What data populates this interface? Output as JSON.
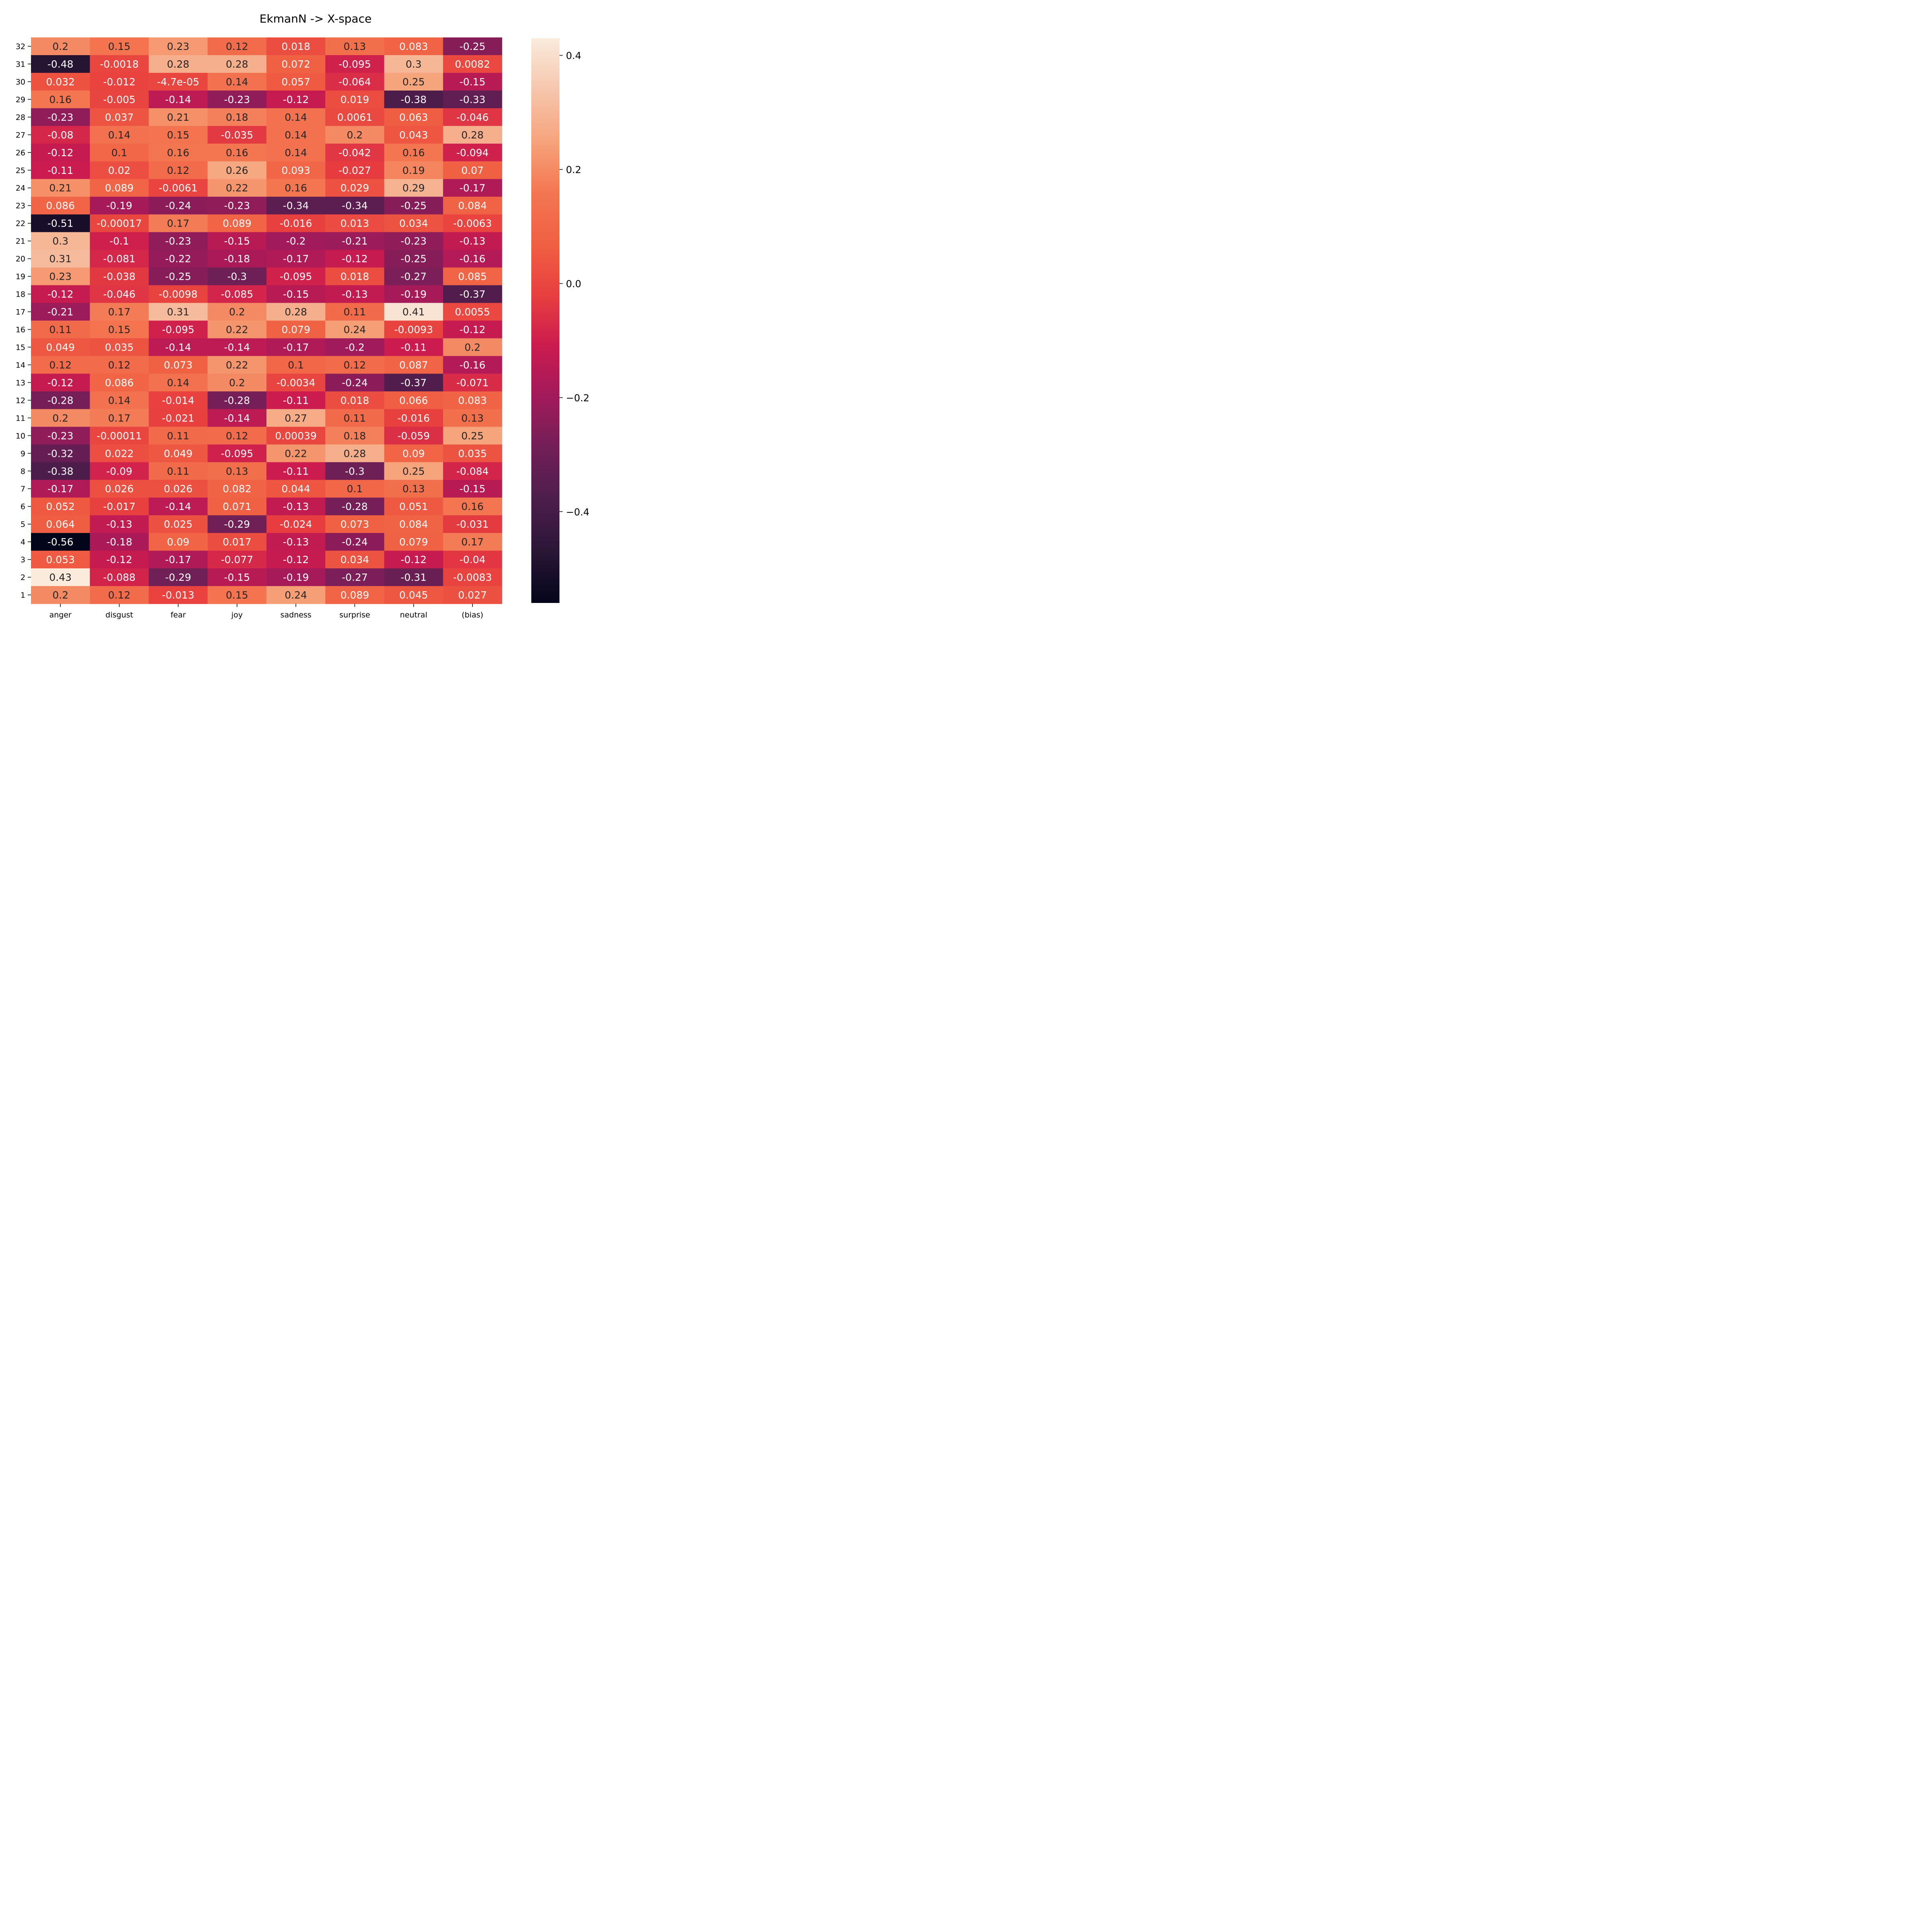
{
  "chart_data": {
    "type": "heatmap",
    "title": "EkmanN -> X-space",
    "x_categories": [
      "anger",
      "disgust",
      "fear",
      "joy",
      "sadness",
      "surprise",
      "neutral",
      "(bias)"
    ],
    "y_categories": [
      "32",
      "31",
      "30",
      "29",
      "28",
      "27",
      "26",
      "25",
      "24",
      "23",
      "22",
      "21",
      "20",
      "19",
      "18",
      "17",
      "16",
      "15",
      "14",
      "13",
      "12",
      "11",
      "10",
      "9",
      "8",
      "7",
      "6",
      "5",
      "4",
      "3",
      "2",
      "1"
    ],
    "values": [
      [
        0.2,
        0.15,
        0.23,
        0.12,
        0.018,
        0.13,
        0.083,
        -0.25
      ],
      [
        -0.48,
        -0.0018,
        0.28,
        0.28,
        0.072,
        -0.095,
        0.3,
        0.0082
      ],
      [
        0.032,
        -0.012,
        -4.7e-05,
        0.14,
        0.057,
        -0.064,
        0.25,
        -0.15
      ],
      [
        0.16,
        -0.005,
        -0.14,
        -0.23,
        -0.12,
        0.019,
        -0.38,
        -0.33
      ],
      [
        -0.23,
        0.037,
        0.21,
        0.18,
        0.14,
        0.0061,
        0.063,
        -0.046
      ],
      [
        -0.08,
        0.14,
        0.15,
        -0.035,
        0.14,
        0.2,
        0.043,
        0.28
      ],
      [
        -0.12,
        0.1,
        0.16,
        0.16,
        0.14,
        -0.042,
        0.16,
        -0.094
      ],
      [
        -0.11,
        0.02,
        0.12,
        0.26,
        0.093,
        -0.027,
        0.19,
        0.07
      ],
      [
        0.21,
        0.089,
        -0.0061,
        0.22,
        0.16,
        0.029,
        0.29,
        -0.17
      ],
      [
        0.086,
        -0.19,
        -0.24,
        -0.23,
        -0.34,
        -0.34,
        -0.25,
        0.084
      ],
      [
        -0.51,
        -0.00017,
        0.17,
        0.089,
        -0.016,
        0.013,
        0.034,
        -0.0063
      ],
      [
        0.3,
        -0.1,
        -0.23,
        -0.15,
        -0.2,
        -0.21,
        -0.23,
        -0.13
      ],
      [
        0.31,
        -0.081,
        -0.22,
        -0.18,
        -0.17,
        -0.12,
        -0.25,
        -0.16
      ],
      [
        0.23,
        -0.038,
        -0.25,
        -0.3,
        -0.095,
        0.018,
        -0.27,
        0.085
      ],
      [
        -0.12,
        -0.046,
        -0.0098,
        -0.085,
        -0.15,
        -0.13,
        -0.19,
        -0.37
      ],
      [
        -0.21,
        0.17,
        0.31,
        0.2,
        0.28,
        0.11,
        0.41,
        0.0055
      ],
      [
        0.11,
        0.15,
        -0.095,
        0.22,
        0.079,
        0.24,
        -0.0093,
        -0.12
      ],
      [
        0.049,
        0.035,
        -0.14,
        -0.14,
        -0.17,
        -0.2,
        -0.11,
        0.2
      ],
      [
        0.12,
        0.12,
        0.073,
        0.22,
        0.1,
        0.12,
        0.087,
        -0.16
      ],
      [
        -0.12,
        0.086,
        0.14,
        0.2,
        -0.0034,
        -0.24,
        -0.37,
        -0.071
      ],
      [
        -0.28,
        0.14,
        -0.014,
        -0.28,
        -0.11,
        0.018,
        0.066,
        0.083
      ],
      [
        0.2,
        0.17,
        -0.021,
        -0.14,
        0.27,
        0.11,
        -0.016,
        0.13
      ],
      [
        -0.23,
        -0.00011,
        0.11,
        0.12,
        0.00039,
        0.18,
        -0.059,
        0.25
      ],
      [
        -0.32,
        0.022,
        0.049,
        -0.095,
        0.22,
        0.28,
        0.09,
        0.035
      ],
      [
        -0.38,
        -0.09,
        0.11,
        0.13,
        -0.11,
        -0.3,
        0.25,
        -0.084
      ],
      [
        -0.17,
        0.026,
        0.026,
        0.082,
        0.044,
        0.1,
        0.13,
        -0.15
      ],
      [
        0.052,
        -0.017,
        -0.14,
        0.071,
        -0.13,
        -0.28,
        0.051,
        0.16
      ],
      [
        0.064,
        -0.13,
        0.025,
        -0.29,
        -0.024,
        0.073,
        0.084,
        -0.031
      ],
      [
        -0.56,
        -0.18,
        0.09,
        0.017,
        -0.13,
        -0.24,
        0.079,
        0.17
      ],
      [
        0.053,
        -0.12,
        -0.17,
        -0.077,
        -0.12,
        0.034,
        -0.12,
        -0.04
      ],
      [
        0.43,
        -0.088,
        -0.29,
        -0.15,
        -0.19,
        -0.27,
        -0.31,
        -0.0083
      ],
      [
        0.2,
        0.12,
        -0.013,
        0.15,
        0.24,
        0.089,
        0.045,
        0.027
      ]
    ],
    "value_labels": [
      [
        "0.2",
        "0.15",
        "0.23",
        "0.12",
        "0.018",
        "0.13",
        "0.083",
        "-0.25"
      ],
      [
        "-0.48",
        "-0.0018",
        "0.28",
        "0.28",
        "0.072",
        "-0.095",
        "0.3",
        "0.0082"
      ],
      [
        "0.032",
        "-0.012",
        "-4.7e-05",
        "0.14",
        "0.057",
        "-0.064",
        "0.25",
        "-0.15"
      ],
      [
        "0.16",
        "-0.005",
        "-0.14",
        "-0.23",
        "-0.12",
        "0.019",
        "-0.38",
        "-0.33"
      ],
      [
        "-0.23",
        "0.037",
        "0.21",
        "0.18",
        "0.14",
        "0.0061",
        "0.063",
        "-0.046"
      ],
      [
        "-0.08",
        "0.14",
        "0.15",
        "-0.035",
        "0.14",
        "0.2",
        "0.043",
        "0.28"
      ],
      [
        "-0.12",
        "0.1",
        "0.16",
        "0.16",
        "0.14",
        "-0.042",
        "0.16",
        "-0.094"
      ],
      [
        "-0.11",
        "0.02",
        "0.12",
        "0.26",
        "0.093",
        "-0.027",
        "0.19",
        "0.07"
      ],
      [
        "0.21",
        "0.089",
        "-0.0061",
        "0.22",
        "0.16",
        "0.029",
        "0.29",
        "-0.17"
      ],
      [
        "0.086",
        "-0.19",
        "-0.24",
        "-0.23",
        "-0.34",
        "-0.34",
        "-0.25",
        "0.084"
      ],
      [
        "-0.51",
        "-0.00017",
        "0.17",
        "0.089",
        "-0.016",
        "0.013",
        "0.034",
        "-0.0063"
      ],
      [
        "0.3",
        "-0.1",
        "-0.23",
        "-0.15",
        "-0.2",
        "-0.21",
        "-0.23",
        "-0.13"
      ],
      [
        "0.31",
        "-0.081",
        "-0.22",
        "-0.18",
        "-0.17",
        "-0.12",
        "-0.25",
        "-0.16"
      ],
      [
        "0.23",
        "-0.038",
        "-0.25",
        "-0.3",
        "-0.095",
        "0.018",
        "-0.27",
        "0.085"
      ],
      [
        "-0.12",
        "-0.046",
        "-0.0098",
        "-0.085",
        "-0.15",
        "-0.13",
        "-0.19",
        "-0.37"
      ],
      [
        "-0.21",
        "0.17",
        "0.31",
        "0.2",
        "0.28",
        "0.11",
        "0.41",
        "0.0055"
      ],
      [
        "0.11",
        "0.15",
        "-0.095",
        "0.22",
        "0.079",
        "0.24",
        "-0.0093",
        "-0.12"
      ],
      [
        "0.049",
        "0.035",
        "-0.14",
        "-0.14",
        "-0.17",
        "-0.2",
        "-0.11",
        "0.2"
      ],
      [
        "0.12",
        "0.12",
        "0.073",
        "0.22",
        "0.1",
        "0.12",
        "0.087",
        "-0.16"
      ],
      [
        "-0.12",
        "0.086",
        "0.14",
        "0.2",
        "-0.0034",
        "-0.24",
        "-0.37",
        "-0.071"
      ],
      [
        "-0.28",
        "0.14",
        "-0.014",
        "-0.28",
        "-0.11",
        "0.018",
        "0.066",
        "0.083"
      ],
      [
        "0.2",
        "0.17",
        "-0.021",
        "-0.14",
        "0.27",
        "0.11",
        "-0.016",
        "0.13"
      ],
      [
        "-0.23",
        "-0.00011",
        "0.11",
        "0.12",
        "0.00039",
        "0.18",
        "-0.059",
        "0.25"
      ],
      [
        "-0.32",
        "0.022",
        "0.049",
        "-0.095",
        "0.22",
        "0.28",
        "0.09",
        "0.035"
      ],
      [
        "-0.38",
        "-0.09",
        "0.11",
        "0.13",
        "-0.11",
        "-0.3",
        "0.25",
        "-0.084"
      ],
      [
        "-0.17",
        "0.026",
        "0.026",
        "0.082",
        "0.044",
        "0.1",
        "0.13",
        "-0.15"
      ],
      [
        "0.052",
        "-0.017",
        "-0.14",
        "0.071",
        "-0.13",
        "-0.28",
        "0.051",
        "0.16"
      ],
      [
        "0.064",
        "-0.13",
        "0.025",
        "-0.29",
        "-0.024",
        "0.073",
        "0.084",
        "-0.031"
      ],
      [
        "-0.56",
        "-0.18",
        "0.09",
        "0.017",
        "-0.13",
        "-0.24",
        "0.079",
        "0.17"
      ],
      [
        "0.053",
        "-0.12",
        "-0.17",
        "-0.077",
        "-0.12",
        "0.034",
        "-0.12",
        "-0.04"
      ],
      [
        "0.43",
        "-0.088",
        "-0.29",
        "-0.15",
        "-0.19",
        "-0.27",
        "-0.31",
        "-0.0083"
      ],
      [
        "0.2",
        "0.12",
        "-0.013",
        "0.15",
        "0.24",
        "0.089",
        "0.045",
        "0.027"
      ]
    ],
    "colorbar": {
      "vmin": -0.56,
      "vmax": 0.43,
      "ticks": [
        0.4,
        0.2,
        0.0,
        -0.2,
        -0.4
      ],
      "tick_labels": [
        "0.4",
        "0.2",
        "0.0",
        "−0.2",
        "−0.4"
      ],
      "colormap": "rocket",
      "colormap_stops": [
        "#03051a",
        "#2a1636",
        "#4c1d4b",
        "#711f57",
        "#a11a5b",
        "#cb1b4f",
        "#e83f3f",
        "#f06043",
        "#f37651",
        "#f6a47c",
        "#f6c6ac",
        "#faebdd"
      ]
    },
    "grid": false
  }
}
